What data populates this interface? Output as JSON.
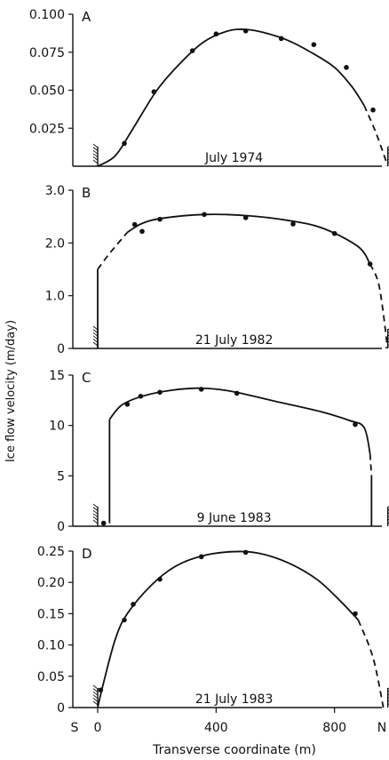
{
  "figure": {
    "ylabel": "Ice flow velocity (m/day)",
    "xlabel": "Transverse coordinate (m)",
    "x_ticks": [
      "0",
      "400",
      "800"
    ],
    "x_tick_values": [
      0,
      400,
      800
    ],
    "edge_labels": [
      "S",
      "N"
    ]
  },
  "chart_data": [
    {
      "type": "line",
      "panel": "A",
      "date": "July 1974",
      "ylim": [
        0,
        0.1
      ],
      "xlim": [
        0,
        960
      ],
      "y_ticks": [
        "0.100",
        "0.075",
        "0.050",
        "0.025"
      ],
      "y_tick_values": [
        0.1,
        0.075,
        0.05,
        0.025
      ],
      "points": [
        [
          90,
          0.015
        ],
        [
          190,
          0.049
        ],
        [
          320,
          0.076
        ],
        [
          400,
          0.087
        ],
        [
          500,
          0.089
        ],
        [
          620,
          0.084
        ],
        [
          730,
          0.08
        ],
        [
          840,
          0.065
        ],
        [
          930,
          0.037
        ]
      ],
      "curve": [
        [
          0,
          0
        ],
        [
          60,
          0.007
        ],
        [
          120,
          0.025
        ],
        [
          200,
          0.05
        ],
        [
          280,
          0.068
        ],
        [
          360,
          0.082
        ],
        [
          440,
          0.089
        ],
        [
          500,
          0.09
        ],
        [
          560,
          0.088
        ],
        [
          640,
          0.083
        ],
        [
          720,
          0.075
        ],
        [
          800,
          0.065
        ],
        [
          860,
          0.052
        ],
        [
          900,
          0.04
        ]
      ],
      "extrap": [
        [
          900,
          0.04
        ],
        [
          940,
          0.022
        ],
        [
          980,
          0.0
        ]
      ]
    },
    {
      "type": "line",
      "panel": "B",
      "date": "21 July 1982",
      "ylim": [
        0,
        3
      ],
      "xlim": [
        0,
        960
      ],
      "y_ticks": [
        "3.0",
        "2.0",
        "1.0",
        "0"
      ],
      "y_tick_values": [
        3,
        2,
        1,
        0
      ],
      "points": [
        [
          125,
          2.35
        ],
        [
          150,
          2.22
        ],
        [
          210,
          2.45
        ],
        [
          360,
          2.54
        ],
        [
          500,
          2.48
        ],
        [
          660,
          2.36
        ],
        [
          800,
          2.18
        ],
        [
          920,
          1.6
        ]
      ],
      "curve": [
        [
          100,
          2.2
        ],
        [
          150,
          2.37
        ],
        [
          220,
          2.47
        ],
        [
          360,
          2.54
        ],
        [
          500,
          2.52
        ],
        [
          640,
          2.43
        ],
        [
          760,
          2.28
        ],
        [
          880,
          1.93
        ],
        [
          920,
          1.6
        ]
      ],
      "extrap": [
        [
          0,
          1.5
        ],
        [
          40,
          1.8
        ],
        [
          100,
          2.2
        ]
      ],
      "extrap2": [
        [
          920,
          1.6
        ],
        [
          950,
          1.2
        ],
        [
          975,
          0.2
        ],
        [
          975,
          0
        ]
      ],
      "verticals": [
        [
          0,
          0,
          1.5
        ]
      ]
    },
    {
      "type": "line",
      "panel": "C",
      "date": "9 June 1983",
      "ylim": [
        0,
        15
      ],
      "xlim": [
        0,
        960
      ],
      "y_ticks": [
        "15",
        "10",
        "5",
        "0"
      ],
      "y_tick_values": [
        15,
        10,
        5,
        0
      ],
      "points": [
        [
          20,
          0.3
        ],
        [
          100,
          12.1
        ],
        [
          145,
          12.9
        ],
        [
          210,
          13.3
        ],
        [
          350,
          13.6
        ],
        [
          470,
          13.2
        ],
        [
          870,
          10.1
        ]
      ],
      "curve": [
        [
          40,
          10.6
        ],
        [
          80,
          12.0
        ],
        [
          150,
          12.9
        ],
        [
          250,
          13.5
        ],
        [
          350,
          13.7
        ],
        [
          450,
          13.4
        ],
        [
          600,
          12.4
        ],
        [
          750,
          11.4
        ],
        [
          850,
          10.5
        ],
        [
          900,
          9.8
        ],
        [
          920,
          7.2
        ]
      ],
      "extrap": [
        [
          920,
          7.2
        ],
        [
          925,
          5.0
        ]
      ],
      "verticals": [
        [
          40,
          0.3,
          10.6
        ],
        [
          925,
          0,
          5.0
        ]
      ]
    },
    {
      "type": "line",
      "panel": "D",
      "date": "21 July 1983",
      "ylim": [
        0,
        0.25
      ],
      "xlim": [
        0,
        960
      ],
      "y_ticks": [
        "0.25",
        "0.20",
        "0.15",
        "0.10",
        "0.05",
        "0"
      ],
      "y_tick_values": [
        0.25,
        0.2,
        0.15,
        0.1,
        0.05,
        0
      ],
      "points": [
        [
          10,
          0.028
        ],
        [
          90,
          0.14
        ],
        [
          120,
          0.165
        ],
        [
          210,
          0.205
        ],
        [
          350,
          0.241
        ],
        [
          500,
          0.248
        ],
        [
          870,
          0.15
        ]
      ],
      "curve": [
        [
          0,
          0
        ],
        [
          20,
          0.04
        ],
        [
          60,
          0.11
        ],
        [
          100,
          0.15
        ],
        [
          180,
          0.195
        ],
        [
          260,
          0.225
        ],
        [
          350,
          0.242
        ],
        [
          450,
          0.249
        ],
        [
          540,
          0.247
        ],
        [
          640,
          0.232
        ],
        [
          740,
          0.205
        ],
        [
          820,
          0.17
        ],
        [
          880,
          0.14
        ]
      ],
      "extrap": [
        [
          880,
          0.14
        ],
        [
          930,
          0.08
        ],
        [
          965,
          0.0
        ]
      ]
    }
  ]
}
